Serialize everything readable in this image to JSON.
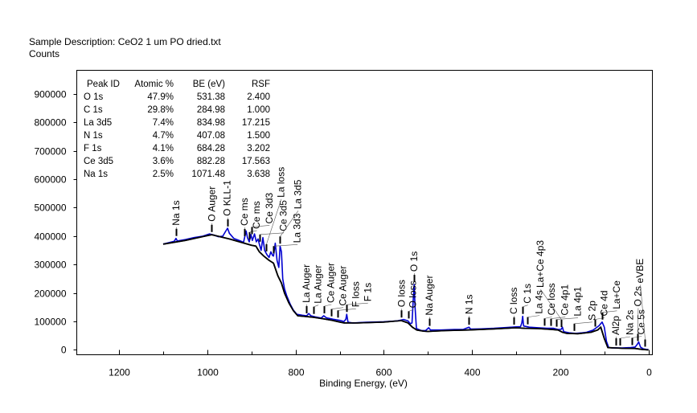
{
  "header": {
    "sample_description": "Sample Description:  CeO2 1 um PO dried.txt",
    "y_label": "Counts"
  },
  "peak_table": {
    "columns": [
      "Peak ID",
      "Atomic %",
      "BE (eV)",
      "RSF"
    ],
    "rows": [
      {
        "peak": "O 1s",
        "atomic": "47.9%",
        "be": "531.38",
        "rsf": "2.400"
      },
      {
        "peak": "C 1s",
        "atomic": "29.8%",
        "be": "284.98",
        "rsf": "1.000"
      },
      {
        "peak": "La 3d5",
        "atomic": "7.4%",
        "be": "834.98",
        "rsf": "17.215"
      },
      {
        "peak": "N 1s",
        "atomic": "4.7%",
        "be": "407.08",
        "rsf": "1.500"
      },
      {
        "peak": "F 1s",
        "atomic": "4.1%",
        "be": "684.28",
        "rsf": "3.202"
      },
      {
        "peak": "Ce 3d5",
        "atomic": "3.6%",
        "be": "882.28",
        "rsf": "17.563"
      },
      {
        "peak": "Na 1s",
        "atomic": "2.5%",
        "be": "1071.48",
        "rsf": "3.638"
      }
    ]
  },
  "chart_data": {
    "type": "line",
    "title": "Sample Description:  CeO2 1 um PO dried.txt",
    "xlabel": "Binding Energy, (eV)",
    "ylabel": "Counts",
    "xlim": [
      1296,
      -9
    ],
    "ylim": [
      -17000,
      983000
    ],
    "x_reversed": true,
    "x_ticks": [
      1200,
      1000,
      800,
      600,
      400,
      200,
      0
    ],
    "x_minor_ticks": [
      1100,
      900,
      700,
      500,
      300,
      100
    ],
    "y_ticks": [
      0,
      100000,
      200000,
      300000,
      400000,
      500000,
      600000,
      700000,
      800000,
      900000
    ],
    "grid": false,
    "colors": {
      "spectrum": "#0000d0",
      "background": "#000000",
      "axes": "#000000"
    },
    "series": [
      {
        "name": "spectrum",
        "points": [
          [
            1100,
            372000
          ],
          [
            1085,
            378000
          ],
          [
            1075,
            382000
          ],
          [
            1071,
            392000
          ],
          [
            1068,
            383000
          ],
          [
            1050,
            388000
          ],
          [
            1030,
            395000
          ],
          [
            1010,
            400000
          ],
          [
            995,
            408000
          ],
          [
            985,
            404000
          ],
          [
            975,
            398000
          ],
          [
            965,
            400000
          ],
          [
            958,
            418000
          ],
          [
            954,
            428000
          ],
          [
            950,
            410000
          ],
          [
            940,
            392000
          ],
          [
            925,
            383000
          ],
          [
            918,
            378000
          ],
          [
            915,
            398000
          ],
          [
            912,
            418000
          ],
          [
            909,
            395000
          ],
          [
            905,
            380000
          ],
          [
            901,
            405000
          ],
          [
            898,
            385000
          ],
          [
            893,
            408000
          ],
          [
            889,
            380000
          ],
          [
            885,
            390000
          ],
          [
            882,
            372000
          ],
          [
            878,
            350000
          ],
          [
            874,
            395000
          ],
          [
            870,
            350000
          ],
          [
            865,
            335000
          ],
          [
            860,
            325000
          ],
          [
            856,
            345000
          ],
          [
            852,
            332000
          ],
          [
            850,
            330000
          ],
          [
            846,
            375000
          ],
          [
            842,
            315000
          ],
          [
            838,
            290000
          ],
          [
            835,
            365000
          ],
          [
            832,
            345000
          ],
          [
            829,
            250000
          ],
          [
            825,
            215000
          ],
          [
            820,
            190000
          ],
          [
            812,
            160000
          ],
          [
            805,
            140000
          ],
          [
            797,
            125000
          ],
          [
            785,
            122000
          ],
          [
            775,
            120000
          ],
          [
            770,
            128000
          ],
          [
            765,
            120000
          ],
          [
            755,
            116000
          ],
          [
            742,
            112000
          ],
          [
            736,
            120000
          ],
          [
            730,
            113000
          ],
          [
            715,
            108000
          ],
          [
            700,
            104000
          ],
          [
            690,
            100000
          ],
          [
            686,
            108000
          ],
          [
            684,
            125000
          ],
          [
            681,
            97000
          ],
          [
            670,
            95000
          ],
          [
            640,
            97000
          ],
          [
            600,
            99000
          ],
          [
            570,
            102000
          ],
          [
            555,
            107000
          ],
          [
            545,
            102000
          ],
          [
            540,
            92000
          ],
          [
            536,
            95000
          ],
          [
            533,
            180000
          ],
          [
            531,
            230000
          ],
          [
            529,
            150000
          ],
          [
            526,
            75000
          ],
          [
            515,
            68000
          ],
          [
            505,
            68000
          ],
          [
            498,
            78000
          ],
          [
            494,
            70000
          ],
          [
            470,
            70000
          ],
          [
            440,
            72000
          ],
          [
            420,
            72000
          ],
          [
            407,
            80000
          ],
          [
            403,
            73000
          ],
          [
            380,
            74000
          ],
          [
            350,
            76000
          ],
          [
            320,
            79000
          ],
          [
            300,
            81000
          ],
          [
            290,
            82000
          ],
          [
            287,
            95000
          ],
          [
            285,
            118000
          ],
          [
            283,
            84000
          ],
          [
            270,
            80000
          ],
          [
            250,
            78000
          ],
          [
            230,
            76000
          ],
          [
            215,
            76000
          ],
          [
            205,
            72000
          ],
          [
            198,
            72000
          ],
          [
            195,
            80000
          ],
          [
            192,
            64000
          ],
          [
            180,
            60000
          ],
          [
            165,
            58000
          ],
          [
            150,
            60000
          ],
          [
            140,
            62000
          ],
          [
            125,
            70000
          ],
          [
            118,
            78000
          ],
          [
            112,
            85000
          ],
          [
            105,
            98000
          ],
          [
            100,
            80000
          ],
          [
            95,
            30000
          ],
          [
            90,
            8000
          ],
          [
            80,
            7000
          ],
          [
            60,
            7000
          ],
          [
            40,
            8000
          ],
          [
            30,
            10000
          ],
          [
            25,
            20000
          ],
          [
            22,
            28000
          ],
          [
            18,
            10000
          ],
          [
            12,
            4000
          ],
          [
            5,
            2000
          ],
          [
            0,
            1000
          ]
        ]
      },
      {
        "name": "background",
        "points": [
          [
            1100,
            372000
          ],
          [
            1050,
            385000
          ],
          [
            1000,
            402000
          ],
          [
            990,
            405000
          ],
          [
            950,
            390000
          ],
          [
            900,
            368000
          ],
          [
            890,
            365000
          ],
          [
            882,
            345000
          ],
          [
            872,
            330000
          ],
          [
            860,
            315000
          ],
          [
            850,
            305000
          ],
          [
            840,
            260000
          ],
          [
            832,
            235000
          ],
          [
            825,
            200000
          ],
          [
            815,
            165000
          ],
          [
            805,
            138000
          ],
          [
            795,
            120000
          ],
          [
            780,
            118000
          ],
          [
            760,
            115000
          ],
          [
            740,
            110000
          ],
          [
            720,
            105000
          ],
          [
            700,
            98000
          ],
          [
            690,
            95000
          ],
          [
            660,
            95000
          ],
          [
            600,
            98000
          ],
          [
            560,
            103000
          ],
          [
            545,
            95000
          ],
          [
            535,
            80000
          ],
          [
            525,
            70000
          ],
          [
            510,
            66000
          ],
          [
            500,
            65000
          ],
          [
            460,
            68000
          ],
          [
            410,
            70000
          ],
          [
            350,
            74000
          ],
          [
            300,
            78000
          ],
          [
            280,
            76000
          ],
          [
            250,
            75000
          ],
          [
            220,
            72000
          ],
          [
            205,
            70000
          ],
          [
            195,
            62000
          ],
          [
            185,
            58000
          ],
          [
            160,
            57000
          ],
          [
            130,
            62000
          ],
          [
            115,
            70000
          ],
          [
            108,
            80000
          ],
          [
            100,
            40000
          ],
          [
            92,
            8000
          ],
          [
            60,
            6000
          ],
          [
            30,
            5000
          ],
          [
            15,
            2000
          ],
          [
            0,
            0
          ]
        ]
      }
    ],
    "annotations": [
      {
        "label": "Na 1s",
        "be": 1071
      },
      {
        "label": "O Auger",
        "be": 990
      },
      {
        "label": "O KLL-1",
        "be": 955
      },
      {
        "label": "Ce ms",
        "be": 916
      },
      {
        "label": "Ce ms",
        "be": 905
      },
      {
        "label": "Ce 3d3",
        "be": 900
      },
      {
        "label": "Ce 3d5",
        "be": 882
      },
      {
        "label": "La loss",
        "be": 866
      },
      {
        "label": "La 3d3",
        "be": 851
      },
      {
        "label": "La 3d5",
        "be": 835
      },
      {
        "label": "La Auger",
        "be": 776
      },
      {
        "label": "La Auger",
        "be": 760
      },
      {
        "label": "Ce Auger",
        "be": 736
      },
      {
        "label": "Ce Auger",
        "be": 720
      },
      {
        "label": "F loss",
        "be": 704
      },
      {
        "label": "F 1s",
        "be": 684
      },
      {
        "label": "O loss",
        "be": 560
      },
      {
        "label": "O loss",
        "be": 545
      },
      {
        "label": "O 1s",
        "be": 531
      },
      {
        "label": "Na Auger",
        "be": 497
      },
      {
        "label": "N 1s",
        "be": 407
      },
      {
        "label": "C loss",
        "be": 305
      },
      {
        "label": "C 1s",
        "be": 285
      },
      {
        "label": "La 4s",
        "be": 275
      },
      {
        "label": "Ce loss",
        "be": 236
      },
      {
        "label": "Ce 4p1",
        "be": 222
      },
      {
        "label": "La 4p1",
        "be": 208
      },
      {
        "label": "La+Ce 4p3",
        "be": 198
      },
      {
        "label": "S 2p",
        "be": 168
      },
      {
        "label": "Ce 4d",
        "be": 122
      },
      {
        "label": "La+Ce",
        "be": 105
      },
      {
        "label": "Al2p",
        "be": 74
      },
      {
        "label": "Na 2s",
        "be": 64
      },
      {
        "label": "Ce 5s",
        "be": 38
      },
      {
        "label": "O 2s",
        "be": 24
      },
      {
        "label": "eVBE",
        "be": 8
      }
    ]
  }
}
